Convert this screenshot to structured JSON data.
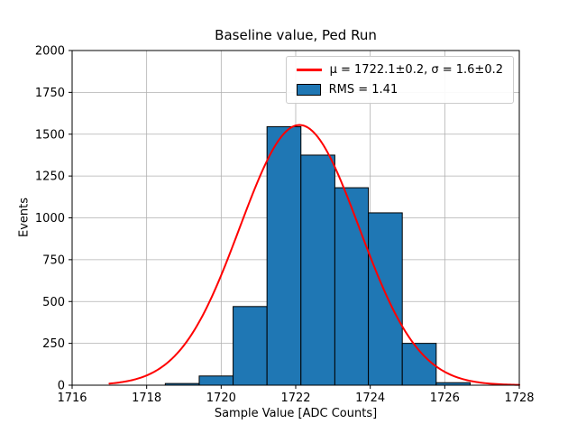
{
  "chart_data": {
    "type": "bar",
    "subtype": "histogram-with-gaussian-fit",
    "title": "Baseline value, Ped Run",
    "xlabel": "Sample Value [ADC Counts]",
    "ylabel": "Events",
    "xlim": [
      1716,
      1728
    ],
    "ylim": [
      0,
      2000
    ],
    "xticks": [
      1716,
      1718,
      1720,
      1722,
      1724,
      1726,
      1728
    ],
    "yticks": [
      0,
      250,
      500,
      750,
      1000,
      1250,
      1500,
      1750,
      2000
    ],
    "grid": true,
    "grid_color": "#b0b0b0",
    "bar_color": "#1f77b4",
    "bar_edge_color": "#000000",
    "bin_edges": [
      1718.5,
      1719.41,
      1720.32,
      1721.23,
      1722.14,
      1723.05,
      1723.95,
      1724.86,
      1725.77,
      1726.68
    ],
    "counts": [
      10,
      55,
      470,
      1545,
      1375,
      1180,
      1030,
      250,
      15
    ],
    "fit_curve": {
      "shape": "gaussian",
      "mu": 1722.1,
      "sigma": 1.6,
      "peak": 1555,
      "color": "#ff0000",
      "x_start": 1717.0,
      "x_end": 1728.0
    },
    "legend": [
      {
        "label": "μ = 1722.1±0.2, σ = 1.6±0.2",
        "swatch": "line",
        "color": "#ff0000"
      },
      {
        "label": "RMS = 1.41",
        "swatch": "patch",
        "color": "#1f77b4"
      }
    ]
  }
}
